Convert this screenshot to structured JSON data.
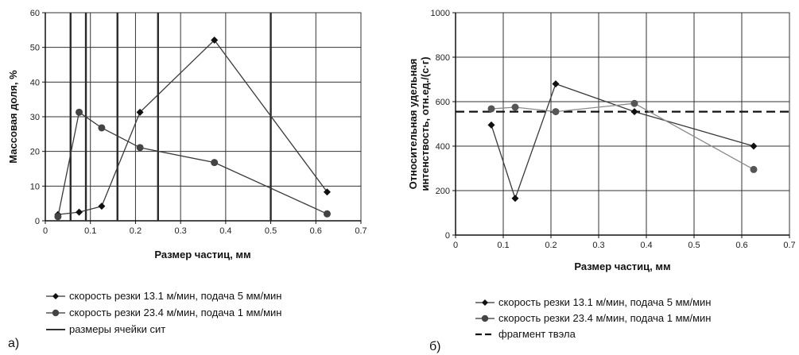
{
  "chart_data": [
    {
      "type": "line",
      "panel_label": "а)",
      "xlabel": "Размер частиц, мм",
      "ylabel": "Массовая доля, %",
      "xlim": [
        0,
        0.7
      ],
      "ylim": [
        0,
        60
      ],
      "xticks": [
        0,
        0.1,
        0.2,
        0.3,
        0.4,
        0.5,
        0.6,
        0.7
      ],
      "xtick_labels": [
        "0",
        "0.1",
        "0.2",
        "0.3",
        "0.4",
        "0.5",
        "0.6",
        "0.7"
      ],
      "yticks": [
        0,
        10,
        20,
        30,
        40,
        50,
        60
      ],
      "ytick_labels": [
        "0",
        "10",
        "20",
        "30",
        "40",
        "50",
        "60"
      ],
      "grid": true,
      "legend_position": "below",
      "series": [
        {
          "name": "скорость резки 13.1 м/мин, подача 5 мм/мин",
          "marker": "diamond",
          "color": "#3a3a3a",
          "x": [
            0.028,
            0.075,
            0.125,
            0.21,
            0.375,
            0.625
          ],
          "y": [
            1.8,
            2.5,
            4.2,
            31.3,
            52.1,
            8.3
          ]
        },
        {
          "name": "скорость резки 23.4 м/мин, подача 1 мм/мин",
          "marker": "circle",
          "color": "#3a3a3a",
          "x": [
            0.028,
            0.075,
            0.125,
            0.21,
            0.375,
            0.625
          ],
          "y": [
            1.2,
            31.3,
            26.8,
            21.1,
            16.8,
            2.0
          ]
        }
      ],
      "vlines": {
        "name": "размеры ячейки сит",
        "x": [
          0.056,
          0.09,
          0.16,
          0.25,
          0.5
        ]
      }
    },
    {
      "type": "line",
      "panel_label": "б)",
      "xlabel": "Размер частиц, мм",
      "ylabel_lines": [
        "Относительная удельная",
        "интенствость, отн.ед./(с·г)"
      ],
      "xlim": [
        0,
        0.7
      ],
      "ylim": [
        0,
        1000
      ],
      "xticks": [
        0,
        0.1,
        0.2,
        0.3,
        0.4,
        0.5,
        0.6,
        0.7
      ],
      "xtick_labels": [
        "0",
        "0.1",
        "0.2",
        "0.3",
        "0.4",
        "0.5",
        "0.6",
        "0.7"
      ],
      "yticks": [
        0,
        200,
        400,
        600,
        800,
        1000
      ],
      "ytick_labels": [
        "0",
        "200",
        "400",
        "600",
        "800",
        "1000"
      ],
      "grid": true,
      "legend_position": "below",
      "series": [
        {
          "name": "скорость резки 13.1 м/мин, подача 5 мм/мин",
          "marker": "diamond",
          "color": "#3a3a3a",
          "x": [
            0.075,
            0.125,
            0.21,
            0.375,
            0.625
          ],
          "y": [
            495,
            165,
            680,
            555,
            400
          ]
        },
        {
          "name": "скорость резки 23.4 м/мин, подача 1 мм/мин",
          "marker": "circle",
          "color": "#8a8a8a",
          "x": [
            0.075,
            0.125,
            0.21,
            0.375,
            0.625
          ],
          "y": [
            568,
            575,
            555,
            592,
            295
          ]
        }
      ],
      "hline": {
        "name": "фрагмент твэла",
        "y": 555
      }
    }
  ]
}
